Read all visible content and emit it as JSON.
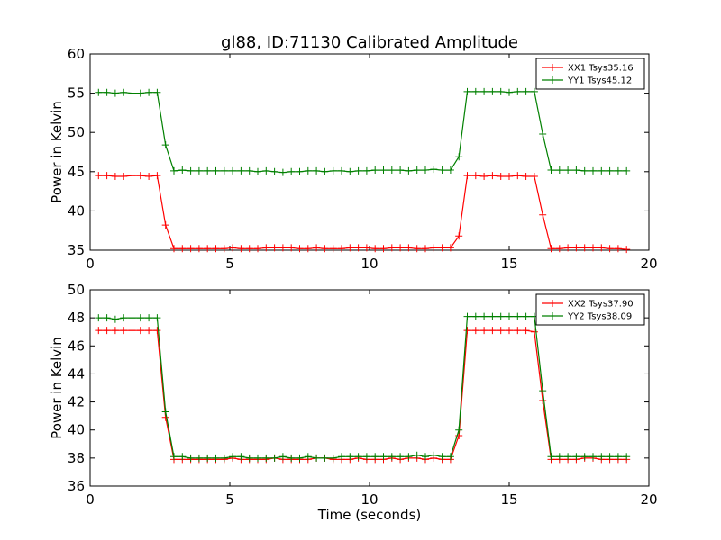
{
  "figure": {
    "title": "gl88, ID:71130 Calibrated Amplitude",
    "xlabel": "Time (seconds)"
  },
  "chart_data": [
    {
      "type": "line",
      "ylabel": "Power in Kelvin",
      "xlim": [
        0,
        20
      ],
      "ylim": [
        35,
        60
      ],
      "x_ticks": [
        0,
        5,
        10,
        15,
        20
      ],
      "y_ticks": [
        35,
        40,
        45,
        50,
        55,
        60
      ],
      "grid": false,
      "legend_position": "top-right",
      "x": [
        0.3,
        0.6,
        0.9,
        1.2,
        1.5,
        1.8,
        2.1,
        2.4,
        2.7,
        3.0,
        3.3,
        3.6,
        3.9,
        4.2,
        4.5,
        4.8,
        5.1,
        5.4,
        5.7,
        6.0,
        6.3,
        6.6,
        6.9,
        7.2,
        7.5,
        7.8,
        8.1,
        8.4,
        8.7,
        9.0,
        9.3,
        9.6,
        9.9,
        10.2,
        10.5,
        10.8,
        11.1,
        11.4,
        11.7,
        12.0,
        12.3,
        12.6,
        12.9,
        13.2,
        13.5,
        13.8,
        14.1,
        14.4,
        14.7,
        15.0,
        15.3,
        15.6,
        15.9,
        16.2,
        16.5,
        16.8,
        17.1,
        17.4,
        17.7,
        18.0,
        18.3,
        18.6,
        18.9,
        19.2
      ],
      "series": [
        {
          "name": "XX1 Tsys35.16",
          "color": "#ff0000",
          "values": [
            44.5,
            44.5,
            44.4,
            44.4,
            44.5,
            44.5,
            44.4,
            44.5,
            38.2,
            35.2,
            35.2,
            35.2,
            35.2,
            35.2,
            35.2,
            35.2,
            35.3,
            35.2,
            35.2,
            35.2,
            35.3,
            35.3,
            35.3,
            35.3,
            35.2,
            35.2,
            35.3,
            35.2,
            35.2,
            35.2,
            35.3,
            35.3,
            35.3,
            35.2,
            35.2,
            35.3,
            35.3,
            35.3,
            35.2,
            35.2,
            35.3,
            35.3,
            35.3,
            36.8,
            44.5,
            44.5,
            44.4,
            44.5,
            44.4,
            44.4,
            44.5,
            44.4,
            44.4,
            39.5,
            35.2,
            35.2,
            35.3,
            35.3,
            35.3,
            35.3,
            35.3,
            35.2,
            35.2,
            35.1
          ]
        },
        {
          "name": "YY1 Tsys45.12",
          "color": "#008000",
          "values": [
            55.1,
            55.1,
            55.0,
            55.1,
            55.0,
            55.0,
            55.1,
            55.1,
            48.4,
            45.1,
            45.2,
            45.1,
            45.1,
            45.1,
            45.1,
            45.1,
            45.1,
            45.1,
            45.1,
            45.0,
            45.1,
            45.0,
            44.9,
            45.0,
            45.0,
            45.1,
            45.1,
            45.0,
            45.1,
            45.1,
            45.0,
            45.1,
            45.1,
            45.2,
            45.2,
            45.2,
            45.2,
            45.1,
            45.2,
            45.2,
            45.3,
            45.2,
            45.2,
            46.9,
            55.2,
            55.2,
            55.2,
            55.2,
            55.2,
            55.1,
            55.2,
            55.2,
            55.2,
            49.8,
            45.2,
            45.2,
            45.2,
            45.2,
            45.1,
            45.1,
            45.1,
            45.1,
            45.1,
            45.1
          ]
        }
      ]
    },
    {
      "type": "line",
      "ylabel": "Power in Kelvin",
      "xlim": [
        0,
        20
      ],
      "ylim": [
        36,
        50
      ],
      "x_ticks": [
        0,
        5,
        10,
        15,
        20
      ],
      "y_ticks": [
        36,
        38,
        40,
        42,
        44,
        46,
        48,
        50
      ],
      "grid": false,
      "legend_position": "top-right",
      "x": [
        0.3,
        0.6,
        0.9,
        1.2,
        1.5,
        1.8,
        2.1,
        2.4,
        2.7,
        3.0,
        3.3,
        3.6,
        3.9,
        4.2,
        4.5,
        4.8,
        5.1,
        5.4,
        5.7,
        6.0,
        6.3,
        6.6,
        6.9,
        7.2,
        7.5,
        7.8,
        8.1,
        8.4,
        8.7,
        9.0,
        9.3,
        9.6,
        9.9,
        10.2,
        10.5,
        10.8,
        11.1,
        11.4,
        11.7,
        12.0,
        12.3,
        12.6,
        12.9,
        13.2,
        13.5,
        13.8,
        14.1,
        14.4,
        14.7,
        15.0,
        15.3,
        15.6,
        15.9,
        16.2,
        16.5,
        16.8,
        17.1,
        17.4,
        17.7,
        18.0,
        18.3,
        18.6,
        18.9,
        19.2
      ],
      "series": [
        {
          "name": "XX2 Tsys37.90",
          "color": "#ff0000",
          "values": [
            47.1,
            47.1,
            47.1,
            47.1,
            47.1,
            47.1,
            47.1,
            47.1,
            40.9,
            37.9,
            37.9,
            37.9,
            37.9,
            37.9,
            37.9,
            37.9,
            38.0,
            37.9,
            37.9,
            37.9,
            37.9,
            38.0,
            37.9,
            37.9,
            37.9,
            37.9,
            38.0,
            38.0,
            37.9,
            37.9,
            37.9,
            38.0,
            37.9,
            37.9,
            37.9,
            38.0,
            37.9,
            38.0,
            38.0,
            37.9,
            38.0,
            37.9,
            37.9,
            39.6,
            47.1,
            47.1,
            47.1,
            47.1,
            47.1,
            47.1,
            47.1,
            47.1,
            47.0,
            42.1,
            37.9,
            37.9,
            37.9,
            37.9,
            38.0,
            38.0,
            37.9,
            37.9,
            37.9,
            37.9
          ]
        },
        {
          "name": "YY2 Tsys38.09",
          "color": "#008000",
          "values": [
            48.0,
            48.0,
            47.9,
            48.0,
            48.0,
            48.0,
            48.0,
            48.0,
            41.3,
            38.1,
            38.1,
            38.0,
            38.0,
            38.0,
            38.0,
            38.0,
            38.1,
            38.1,
            38.0,
            38.0,
            38.0,
            38.0,
            38.1,
            38.0,
            38.0,
            38.1,
            38.0,
            38.0,
            38.0,
            38.1,
            38.1,
            38.1,
            38.1,
            38.1,
            38.1,
            38.1,
            38.1,
            38.1,
            38.2,
            38.1,
            38.2,
            38.1,
            38.1,
            40.0,
            48.1,
            48.1,
            48.1,
            48.1,
            48.1,
            48.1,
            48.1,
            48.1,
            48.1,
            42.8,
            38.1,
            38.1,
            38.1,
            38.1,
            38.1,
            38.1,
            38.1,
            38.1,
            38.1,
            38.1
          ]
        }
      ]
    }
  ]
}
